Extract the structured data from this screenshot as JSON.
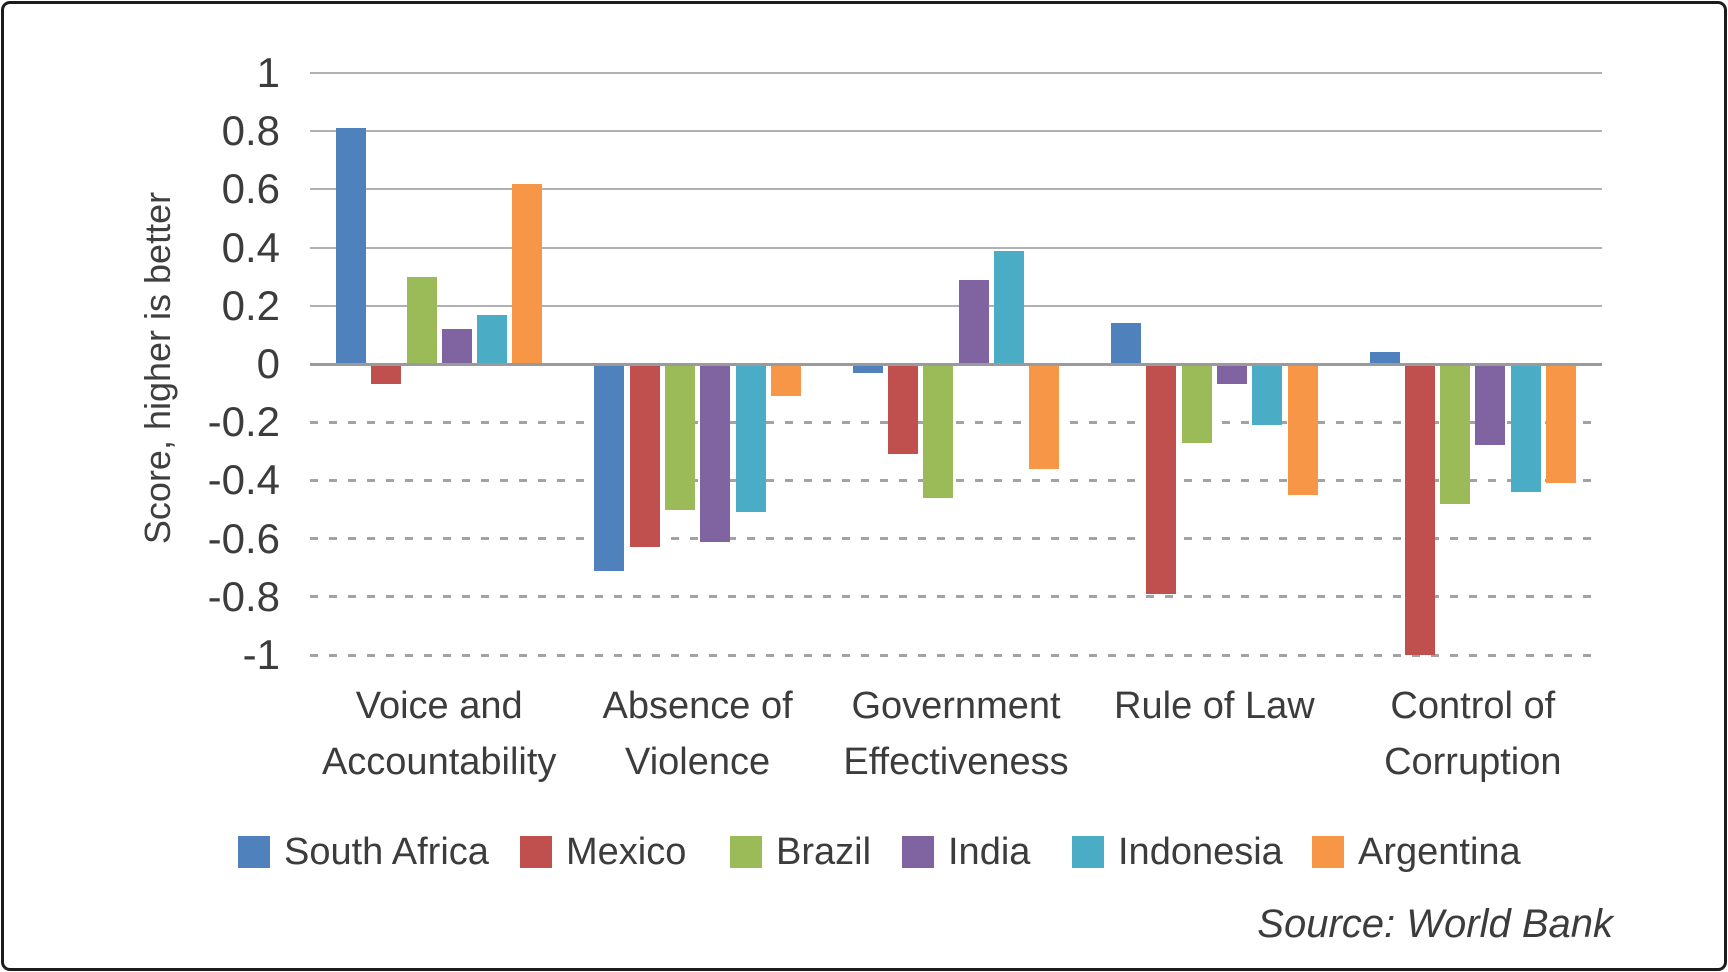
{
  "figure": {
    "y_axis_title": "Score, higher is better",
    "source_note": "Source: World Bank"
  },
  "chart_data": {
    "type": "bar",
    "title": "",
    "xlabel": "",
    "ylabel": "Score, higher is better",
    "ylim": [
      -1,
      1
    ],
    "ytick_interval": 0.2,
    "yticks": [
      1,
      0.8,
      0.6,
      0.4,
      0.2,
      0,
      -0.2,
      -0.4,
      -0.6,
      -0.8,
      -1
    ],
    "grid": "horizontal: solid lines above zero, dashed lines below zero",
    "legend_position": "bottom",
    "categories": [
      "Voice and Accountability",
      "Absence of Violence",
      "Government Effectiveness",
      "Rule of Law",
      "Control of Corruption"
    ],
    "category_label_lines": [
      [
        "Voice and",
        "Accountability"
      ],
      [
        "Absence of",
        "Violence"
      ],
      [
        "Government",
        "Effectiveness"
      ],
      [
        "Rule of Law",
        ""
      ],
      [
        "Control of",
        "Corruption"
      ]
    ],
    "series": [
      {
        "name": "South Africa",
        "color": "#4F81BD",
        "values": [
          0.81,
          -0.71,
          -0.03,
          0.14,
          0.04
        ]
      },
      {
        "name": "Mexico",
        "color": "#C0504D",
        "values": [
          -0.07,
          -0.63,
          -0.31,
          -0.79,
          -1.0
        ]
      },
      {
        "name": "Brazil",
        "color": "#9BBB59",
        "values": [
          0.3,
          -0.5,
          -0.46,
          -0.27,
          -0.48
        ]
      },
      {
        "name": "India",
        "color": "#8064A2",
        "values": [
          0.12,
          -0.61,
          0.29,
          -0.07,
          -0.28
        ]
      },
      {
        "name": "Indonesia",
        "color": "#4BACC6",
        "values": [
          0.17,
          -0.51,
          0.39,
          -0.21,
          -0.44
        ]
      },
      {
        "name": "Argentina",
        "color": "#F79646",
        "values": [
          0.62,
          -0.11,
          -0.36,
          -0.45,
          -0.41
        ]
      }
    ],
    "source": "Source: World Bank"
  }
}
